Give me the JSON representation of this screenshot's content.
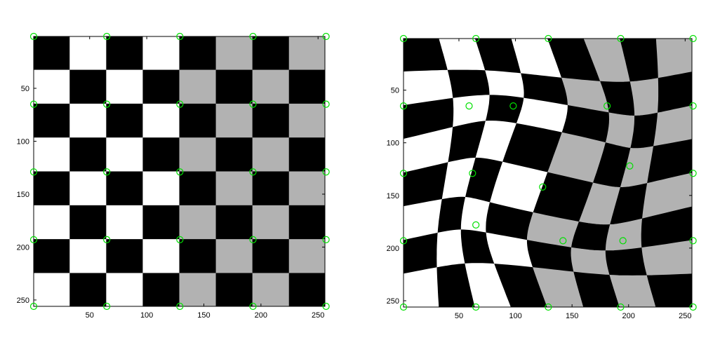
{
  "chart_data": [
    {
      "type": "heatmap",
      "title": "",
      "xlabel": "",
      "ylabel": "",
      "xlim": [
        1,
        256
      ],
      "ylim": [
        1,
        256
      ],
      "y_reversed": true,
      "grid": false,
      "board": {
        "rows": 8,
        "cols": 8,
        "light_gray_half": "right",
        "colors": {
          "dark": "#000000",
          "light": "#ffffff",
          "gray": "#b2b2b2"
        }
      },
      "control_point_color": "#00e000",
      "x_ticks": [
        50,
        100,
        150,
        200,
        250
      ],
      "x_tick_labels": [
        "50",
        "100",
        "150",
        "200",
        "250"
      ],
      "y_ticks": [
        50,
        100,
        150,
        200,
        250
      ],
      "y_tick_labels": [
        "50",
        "100",
        "150",
        "200",
        "250"
      ],
      "control_points": [
        [
          1,
          1
        ],
        [
          65,
          1
        ],
        [
          129,
          1
        ],
        [
          193,
          1
        ],
        [
          257,
          1
        ],
        [
          1,
          65
        ],
        [
          65,
          65
        ],
        [
          129,
          65
        ],
        [
          193,
          65
        ],
        [
          257,
          65
        ],
        [
          1,
          129
        ],
        [
          65,
          129
        ],
        [
          129,
          129
        ],
        [
          193,
          129
        ],
        [
          257,
          129
        ],
        [
          1,
          193
        ],
        [
          65,
          193
        ],
        [
          129,
          193
        ],
        [
          193,
          193
        ],
        [
          257,
          193
        ],
        [
          1,
          256
        ],
        [
          65,
          256
        ],
        [
          129,
          256
        ],
        [
          193,
          256
        ],
        [
          257,
          256
        ]
      ]
    },
    {
      "type": "heatmap",
      "title": "",
      "xlabel": "",
      "ylabel": "",
      "xlim": [
        1,
        256
      ],
      "ylim": [
        1,
        256
      ],
      "y_reversed": true,
      "grid": false,
      "board": {
        "rows": 8,
        "cols": 8,
        "light_gray_half": "right",
        "warped": true,
        "colors": {
          "dark": "#000000",
          "light": "#ffffff",
          "gray": "#b2b2b2"
        }
      },
      "control_point_color": "#00e000",
      "x_ticks": [
        50,
        100,
        150,
        200,
        250
      ],
      "x_tick_labels": [
        "50",
        "100",
        "150",
        "200",
        "250"
      ],
      "y_ticks": [
        50,
        100,
        150,
        200,
        250
      ],
      "y_tick_labels": [
        "50",
        "100",
        "150",
        "200",
        "250"
      ],
      "control_points": [
        [
          1,
          1
        ],
        [
          65,
          1
        ],
        [
          129,
          1
        ],
        [
          193,
          1
        ],
        [
          257,
          1
        ],
        [
          1,
          65
        ],
        [
          59,
          65
        ],
        [
          98,
          65
        ],
        [
          181,
          65
        ],
        [
          257,
          65
        ],
        [
          1,
          129
        ],
        [
          62,
          129
        ],
        [
          124,
          142
        ],
        [
          201,
          122
        ],
        [
          257,
          129
        ],
        [
          1,
          193
        ],
        [
          65,
          178
        ],
        [
          142,
          193
        ],
        [
          195,
          193
        ],
        [
          257,
          193
        ],
        [
          1,
          256
        ],
        [
          65,
          256
        ],
        [
          129,
          256
        ],
        [
          193,
          256
        ],
        [
          257,
          256
        ]
      ]
    }
  ]
}
